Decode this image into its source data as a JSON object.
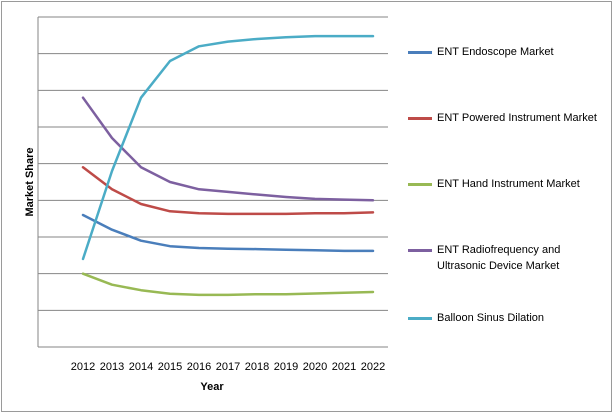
{
  "chart_data": {
    "type": "line",
    "xlabel": "Year",
    "ylabel": "Market Share",
    "x": [
      "2012",
      "2013",
      "2014",
      "2015",
      "2016",
      "2017",
      "2018",
      "2019",
      "2020",
      "2021",
      "2022"
    ],
    "ylim": [
      0,
      9
    ],
    "y_ticks_shown": false,
    "grid": "horizontal",
    "legend_position": "right",
    "series": [
      {
        "name": "ENT Endoscope Market",
        "color": "#4a7ebb",
        "values": [
          3.6,
          3.2,
          2.9,
          2.75,
          2.7,
          2.68,
          2.67,
          2.65,
          2.64,
          2.62,
          2.62
        ]
      },
      {
        "name": "ENT Powered Instrument Market",
        "color": "#be4b48",
        "values": [
          4.9,
          4.3,
          3.9,
          3.7,
          3.65,
          3.63,
          3.63,
          3.63,
          3.65,
          3.65,
          3.67
        ]
      },
      {
        "name": "ENT Hand Instrument Market",
        "color": "#98b954",
        "values": [
          2.0,
          1.7,
          1.55,
          1.45,
          1.42,
          1.42,
          1.44,
          1.44,
          1.46,
          1.48,
          1.5
        ]
      },
      {
        "name": "ENT Radiofrequency and Ultrasonic Device Market",
        "color": "#7d60a0",
        "values": [
          6.8,
          5.7,
          4.9,
          4.5,
          4.3,
          4.23,
          4.16,
          4.09,
          4.04,
          4.02,
          4.0
        ]
      },
      {
        "name": "Balloon Sinus Dilation",
        "color": "#4bacc6",
        "values": [
          2.4,
          4.8,
          6.8,
          7.8,
          8.2,
          8.33,
          8.4,
          8.45,
          8.48,
          8.48,
          8.48
        ]
      }
    ]
  }
}
